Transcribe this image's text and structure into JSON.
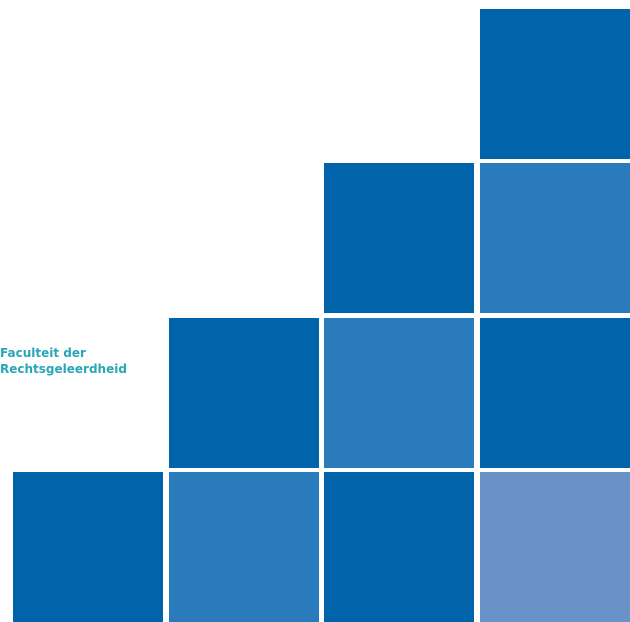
{
  "faculty_label": {
    "line1": "Faculteit der",
    "line2": "Rechtsgeleerdheid"
  },
  "colors": {
    "dark_blue": "#0164ab",
    "mid_blue": "#2a7bbb",
    "light_blue": "#6993c8",
    "label_teal": "#28a7b6"
  },
  "squares": [
    {
      "name": "square-row1-col4",
      "shade": "dark_blue"
    },
    {
      "name": "square-row2-col3",
      "shade": "dark_blue"
    },
    {
      "name": "square-row2-col4",
      "shade": "mid_blue"
    },
    {
      "name": "square-row3-col2",
      "shade": "dark_blue"
    },
    {
      "name": "square-row3-col3",
      "shade": "mid_blue"
    },
    {
      "name": "square-row3-col4",
      "shade": "dark_blue"
    },
    {
      "name": "square-row4-col1",
      "shade": "dark_blue"
    },
    {
      "name": "square-row4-col2",
      "shade": "mid_blue"
    },
    {
      "name": "square-row4-col3",
      "shade": "dark_blue"
    },
    {
      "name": "square-row4-col4",
      "shade": "light_blue"
    }
  ]
}
